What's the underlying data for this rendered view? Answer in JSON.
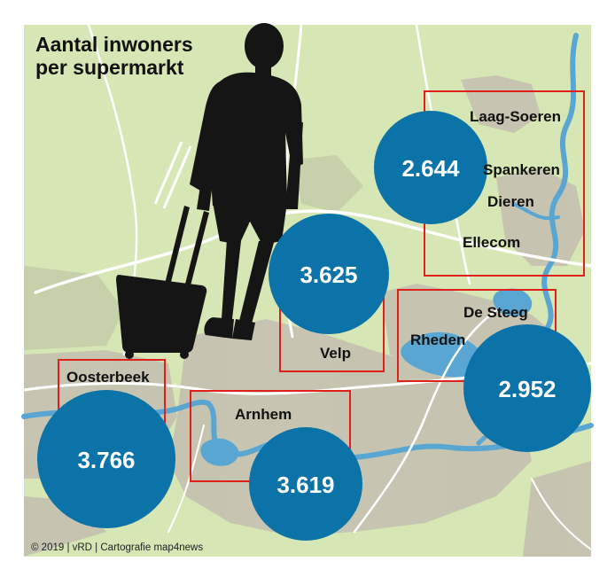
{
  "title": {
    "line1": "Aantal inwoners",
    "line2": "per supermarkt"
  },
  "credit": "© 2019 | vRD | Cartografie map4news",
  "towns": {
    "laag_soeren": "Laag-Soeren",
    "spankeren": "Spankeren",
    "dieren": "Dieren",
    "ellecom": "Ellecom",
    "de_steeg": "De Steeg",
    "rheden": "Rheden",
    "velp": "Velp",
    "oosterbeek": "Oosterbeek",
    "arnhem": "Arnhem"
  },
  "values": {
    "dieren_area": "2.644",
    "velp": "3.625",
    "rheden_area": "2.952",
    "oosterbeek": "3.766",
    "arnhem": "3.619"
  },
  "colors": {
    "map_green": "#d6e7b5",
    "urban": "#c5c1b0",
    "water": "#5aa6d2",
    "road": "#ffffff",
    "bubble": "#0b73a8",
    "box_outline": "#e0201b",
    "silhouette": "#151515"
  }
}
